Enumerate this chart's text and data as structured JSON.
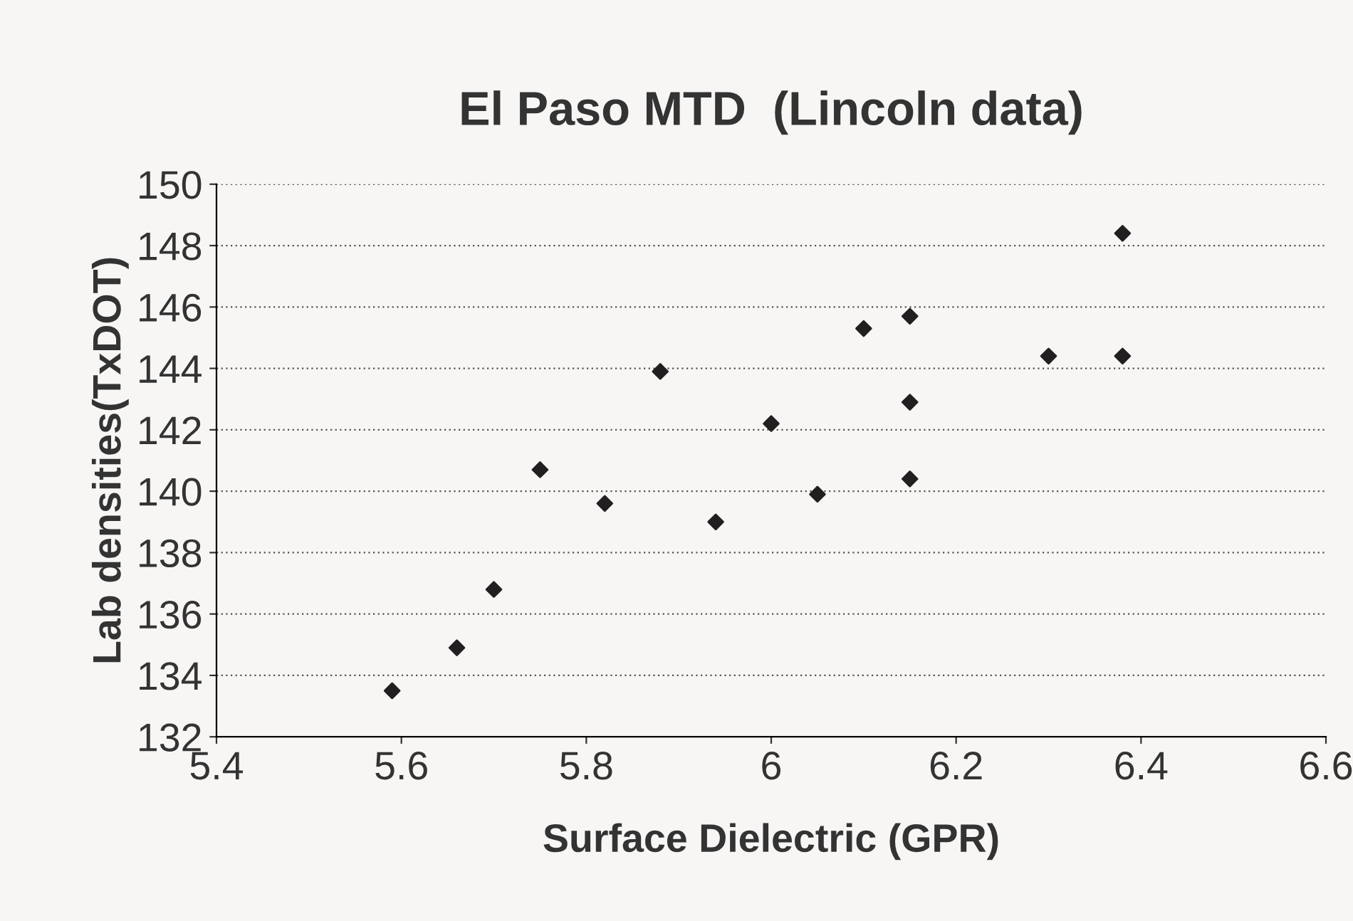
{
  "chart_data": {
    "type": "scatter",
    "title": "El Paso MTD  (Lincoln data)",
    "xlabel": "Surface Dielectric (GPR)",
    "ylabel": "Lab densities(TxDOT)",
    "x": [
      5.59,
      5.66,
      5.7,
      5.75,
      5.82,
      5.88,
      5.94,
      6.0,
      6.05,
      6.1,
      6.15,
      6.15,
      6.15,
      6.3,
      6.38,
      6.38
    ],
    "series": [
      {
        "color": "#231f20",
        "values": [
          133.5,
          134.9,
          136.8,
          140.7,
          139.6,
          143.9,
          139.0,
          142.2,
          139.9,
          145.3,
          145.7,
          142.9,
          140.4,
          144.4,
          148.4,
          144.4
        ]
      }
    ],
    "xlim": [
      5.4,
      6.6
    ],
    "xticks": [
      5.4,
      5.6,
      5.8,
      {
        "value": 6.0,
        "label": "6"
      },
      6.2,
      6.4,
      6.6
    ],
    "ylim": [
      132,
      150
    ],
    "yticks": [
      132,
      134,
      136,
      138,
      140,
      142,
      144,
      146,
      148,
      150
    ],
    "grid": "y",
    "marker": "diamond"
  }
}
